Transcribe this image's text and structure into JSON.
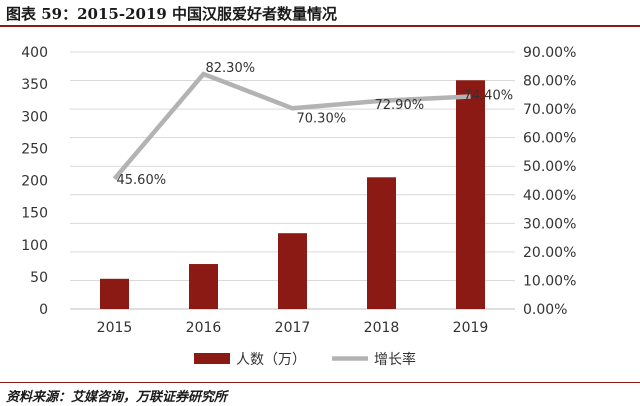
{
  "header": {
    "title": "图表 59：2015-2019 中国汉服爱好者数量情况"
  },
  "footer": {
    "source": "资料来源：艾媒咨询，万联证券研究所"
  },
  "colors": {
    "bar": "#8b1a14",
    "line": "#b3b3b3",
    "grid": "#d9d9d9",
    "rule": "#8a1a16"
  },
  "chart_data": {
    "type": "bar+line",
    "categories": [
      "2015",
      "2016",
      "2017",
      "2018",
      "2019"
    ],
    "series": [
      {
        "name": "人数（万）",
        "type": "bar",
        "axis": "left",
        "values": [
          47,
          70,
          118,
          205,
          356
        ]
      },
      {
        "name": "增长率",
        "type": "line",
        "axis": "right",
        "values": [
          45.6,
          82.3,
          70.3,
          72.9,
          74.4
        ],
        "labels": [
          "45.60%",
          "82.30%",
          "70.30%",
          "72.90%",
          "74.40%"
        ]
      }
    ],
    "y_left": {
      "min": 0,
      "max": 400,
      "ticks": [
        "0",
        "50",
        "100",
        "150",
        "200",
        "250",
        "300",
        "350",
        "400"
      ]
    },
    "y_right": {
      "min": 0,
      "max": 90,
      "ticks": [
        "0.00%",
        "10.00%",
        "20.00%",
        "30.00%",
        "40.00%",
        "50.00%",
        "60.00%",
        "70.00%",
        "80.00%",
        "90.00%"
      ]
    },
    "grid": true,
    "legend": "bottom"
  }
}
